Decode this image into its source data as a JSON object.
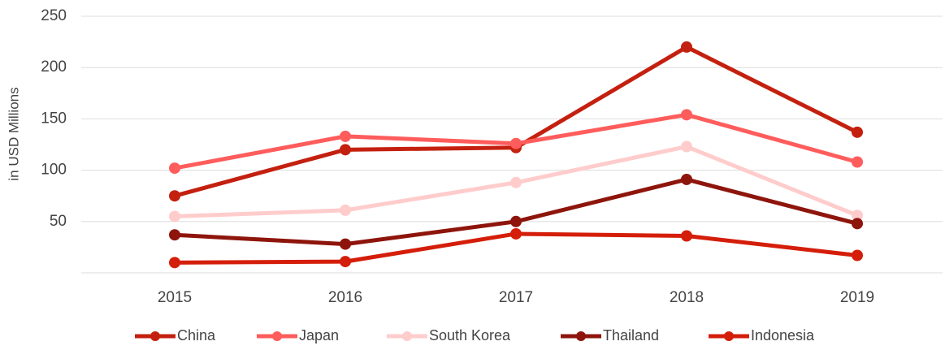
{
  "chart_data": {
    "type": "line",
    "y_label": "in USD Millions",
    "categories": [
      "2015",
      "2016",
      "2017",
      "2018",
      "2019"
    ],
    "series": [
      {
        "name": "China",
        "color": "#c4200f",
        "values": [
          75,
          120,
          122,
          220,
          137
        ]
      },
      {
        "name": "Japan",
        "color": "#ff5c5c",
        "values": [
          102,
          133,
          126,
          154,
          108
        ]
      },
      {
        "name": "South Korea",
        "color": "#ffcccc",
        "values": [
          55,
          61,
          88,
          123,
          56
        ]
      },
      {
        "name": "Thailand",
        "color": "#8e150c",
        "values": [
          37,
          28,
          50,
          91,
          48
        ]
      },
      {
        "name": "Indonesia",
        "color": "#d41e0a",
        "values": [
          10,
          11,
          38,
          36,
          17
        ]
      }
    ],
    "ylim": [
      0,
      250
    ],
    "yticks": [
      50,
      100,
      150,
      200,
      250
    ],
    "grid": true,
    "legend": "bottom"
  }
}
